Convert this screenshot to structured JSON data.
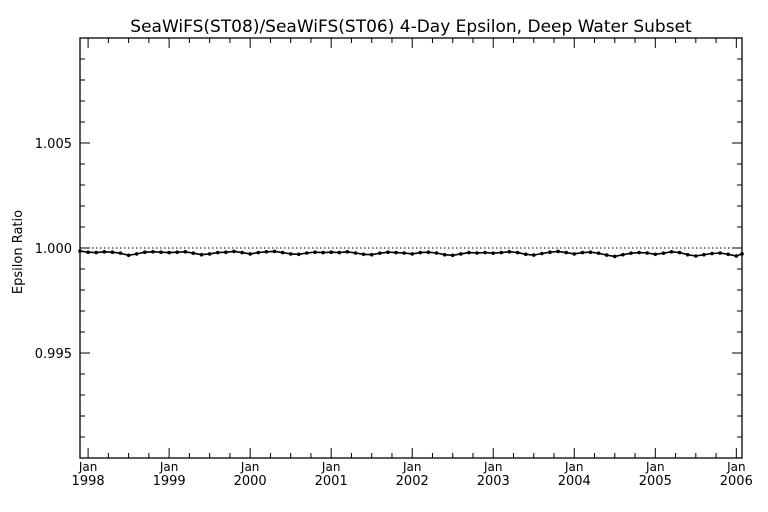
{
  "chart_data": {
    "type": "line",
    "title": "SeaWiFS(ST08)/SeaWiFS(ST06) 4-Day Epsilon, Deep Water Subset",
    "xlabel": "",
    "ylabel": "Epsilon Ratio",
    "ylim": [
      0.99,
      1.01
    ],
    "xlim": [
      1997.9,
      2006.07
    ],
    "y_ticks": [
      {
        "value": 1.005,
        "label": "1.005"
      },
      {
        "value": 1.0,
        "label": "1.000"
      },
      {
        "value": 0.995,
        "label": "0.995"
      }
    ],
    "x_ticks": [
      {
        "value": 1998,
        "month": "Jan",
        "year": "1998"
      },
      {
        "value": 1999,
        "month": "Jan",
        "year": "1999"
      },
      {
        "value": 2000,
        "month": "Jan",
        "year": "2000"
      },
      {
        "value": 2001,
        "month": "Jan",
        "year": "2001"
      },
      {
        "value": 2002,
        "month": "Jan",
        "year": "2002"
      },
      {
        "value": 2003,
        "month": "Jan",
        "year": "2003"
      },
      {
        "value": 2004,
        "month": "Jan",
        "year": "2004"
      },
      {
        "value": 2005,
        "month": "Jan",
        "year": "2005"
      },
      {
        "value": 2006,
        "month": "Jan",
        "year": "2006"
      }
    ],
    "reference_line": 1.0,
    "grid": false,
    "series": [
      {
        "x": [
          1997.9,
          1998.0,
          1998.1,
          1998.2,
          1998.3,
          1998.4,
          1998.5,
          1998.6,
          1998.7,
          1998.8,
          1998.9,
          1999.0,
          1999.1,
          1999.2,
          1999.3,
          1999.4,
          1999.5,
          1999.6,
          1999.7,
          1999.8,
          1999.9,
          2000.0,
          2000.1,
          2000.2,
          2000.3,
          2000.4,
          2000.5,
          2000.6,
          2000.7,
          2000.8,
          2000.9,
          2001.0,
          2001.1,
          2001.2,
          2001.3,
          2001.4,
          2001.5,
          2001.6,
          2001.7,
          2001.8,
          2001.9,
          2002.0,
          2002.1,
          2002.2,
          2002.3,
          2002.4,
          2002.5,
          2002.6,
          2002.7,
          2002.8,
          2002.9,
          2003.0,
          2003.1,
          2003.2,
          2003.3,
          2003.4,
          2003.5,
          2003.6,
          2003.7,
          2003.8,
          2003.9,
          2004.0,
          2004.1,
          2004.2,
          2004.3,
          2004.4,
          2004.5,
          2004.6,
          2004.7,
          2004.8,
          2004.9,
          2005.0,
          2005.1,
          2005.2,
          2005.3,
          2005.4,
          2005.5,
          2005.6,
          2005.7,
          2005.8,
          2005.9,
          2006.0,
          2006.07
        ],
        "y": [
          0.99985,
          0.9998,
          0.99978,
          0.99982,
          0.9998,
          0.99975,
          0.99965,
          0.99972,
          0.9998,
          0.99982,
          0.9998,
          0.99978,
          0.9998,
          0.99982,
          0.99975,
          0.99968,
          0.99972,
          0.99978,
          0.9998,
          0.99984,
          0.99978,
          0.99972,
          0.99978,
          0.99982,
          0.99984,
          0.99978,
          0.99972,
          0.9997,
          0.99976,
          0.9998,
          0.99978,
          0.9998,
          0.99978,
          0.99982,
          0.99976,
          0.9997,
          0.99968,
          0.99975,
          0.9998,
          0.99978,
          0.99976,
          0.99972,
          0.99978,
          0.9998,
          0.99976,
          0.99968,
          0.99965,
          0.99972,
          0.99978,
          0.99976,
          0.99978,
          0.99975,
          0.99978,
          0.99982,
          0.99978,
          0.9997,
          0.99966,
          0.99974,
          0.9998,
          0.99984,
          0.99978,
          0.99972,
          0.99978,
          0.9998,
          0.99975,
          0.99966,
          0.9996,
          0.99968,
          0.99975,
          0.99978,
          0.99976,
          0.9997,
          0.99975,
          0.99982,
          0.99978,
          0.99968,
          0.99962,
          0.99968,
          0.99974,
          0.99976,
          0.9997,
          0.99962,
          0.99972
        ]
      }
    ]
  }
}
